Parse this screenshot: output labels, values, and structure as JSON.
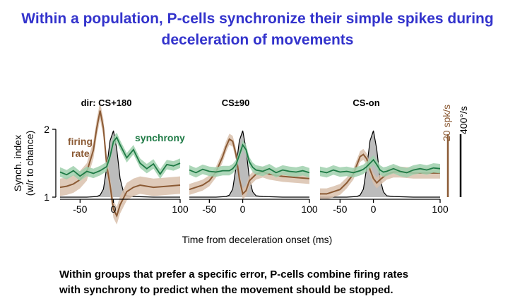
{
  "slide": {
    "title_lines": [
      "Within a population, P-cells synchronize their simple spikes during",
      "deceleration of movements"
    ],
    "caption_lines": [
      "Within groups that prefer a specific error, P-cells combine firing rates",
      "with synchrony to predict when the movement should be stopped."
    ]
  },
  "colors": {
    "title": "#3333cc",
    "synchrony": "#1e7a45",
    "synchrony_band": "#9fd0ad",
    "firing_rate": "#8b5a34",
    "firing_rate_band": "#d9c1ad",
    "velocity": "#000000",
    "velocity_fill": "#b5b5b5"
  },
  "chart_data": {
    "type": "line",
    "xlabel": "Time from deceleration onset (ms)",
    "ylabel_lines": [
      "Synch. index",
      "(w/r to chance)"
    ],
    "ylim": [
      1,
      2
    ],
    "y_ticks": [
      "1",
      "2"
    ],
    "xlim": [
      -80,
      100
    ],
    "x_ticks": [
      -50,
      0,
      100
    ],
    "x_tick_labels": [
      "-50",
      "0",
      "100"
    ],
    "scale_bars": {
      "firing_rate": "20 spk/s",
      "velocity": "400°/s"
    },
    "annotations": {
      "firing_rate": [
        "firing",
        "rate"
      ],
      "synchrony": "synchrony"
    },
    "panels": [
      {
        "title": "dir: CS+180",
        "synchrony": {
          "x": [
            -80,
            -70,
            -60,
            -50,
            -40,
            -30,
            -20,
            -10,
            -5,
            0,
            5,
            10,
            20,
            30,
            40,
            50,
            60,
            70,
            80,
            90,
            100
          ],
          "y": [
            1.37,
            1.33,
            1.39,
            1.31,
            1.38,
            1.35,
            1.39,
            1.45,
            1.6,
            1.82,
            1.88,
            1.77,
            1.58,
            1.7,
            1.5,
            1.42,
            1.49,
            1.34,
            1.48,
            1.46,
            1.5
          ],
          "ci": 0.07
        },
        "firing_rate_pct": {
          "x": [
            -80,
            -70,
            -60,
            -50,
            -40,
            -30,
            -25,
            -20,
            -15,
            -10,
            -5,
            0,
            5,
            10,
            20,
            30,
            40,
            60,
            80,
            100
          ],
          "y": [
            -0.02,
            -0.01,
            0.01,
            0.05,
            0.12,
            0.32,
            0.52,
            0.68,
            0.52,
            0.18,
            0.0,
            -0.22,
            -0.28,
            -0.18,
            -0.06,
            -0.02,
            0.0,
            -0.02,
            -0.01,
            0.0
          ],
          "ci": 0.08
        },
        "velocity_pct": {
          "x": [
            -80,
            -40,
            -25,
            -20,
            -15,
            -10,
            -5,
            0,
            5,
            10,
            15,
            20,
            30,
            60,
            100
          ],
          "y": [
            0.0,
            0.0,
            0.01,
            0.03,
            0.12,
            0.45,
            0.85,
            1.0,
            0.72,
            0.28,
            0.08,
            0.02,
            0.01,
            0.0,
            0.0
          ]
        }
      },
      {
        "title": "CS±90",
        "synchrony": {
          "x": [
            -80,
            -70,
            -60,
            -50,
            -40,
            -30,
            -20,
            -15,
            -10,
            -5,
            0,
            5,
            10,
            15,
            20,
            30,
            40,
            50,
            60,
            70,
            80,
            90,
            100
          ],
          "y": [
            1.4,
            1.36,
            1.41,
            1.38,
            1.37,
            1.39,
            1.39,
            1.42,
            1.48,
            1.62,
            1.77,
            1.7,
            1.52,
            1.44,
            1.4,
            1.38,
            1.42,
            1.36,
            1.4,
            1.38,
            1.37,
            1.39,
            1.36
          ],
          "ci": 0.07
        },
        "firing_rate_pct": {
          "x": [
            -80,
            -70,
            -60,
            -50,
            -40,
            -30,
            -25,
            -20,
            -15,
            -10,
            -5,
            0,
            5,
            10,
            20,
            30,
            40,
            60,
            80,
            100
          ],
          "y": [
            -0.04,
            -0.02,
            0.0,
            0.04,
            0.12,
            0.26,
            0.35,
            0.42,
            0.4,
            0.28,
            0.06,
            -0.08,
            -0.05,
            0.04,
            0.1,
            0.12,
            0.1,
            0.08,
            0.07,
            0.06
          ],
          "ci": 0.05
        },
        "velocity_pct": {
          "x": [
            -80,
            -40,
            -25,
            -20,
            -15,
            -10,
            -5,
            0,
            5,
            10,
            15,
            20,
            30,
            60,
            100
          ],
          "y": [
            0.0,
            0.0,
            0.01,
            0.03,
            0.12,
            0.45,
            0.85,
            1.0,
            0.72,
            0.28,
            0.08,
            0.02,
            0.01,
            0.0,
            0.0
          ]
        }
      },
      {
        "title": "CS-on",
        "synchrony": {
          "x": [
            -80,
            -70,
            -60,
            -50,
            -40,
            -30,
            -20,
            -15,
            -10,
            -5,
            0,
            5,
            10,
            15,
            20,
            30,
            40,
            50,
            60,
            70,
            80,
            90,
            100
          ],
          "y": [
            1.38,
            1.36,
            1.4,
            1.37,
            1.38,
            1.36,
            1.39,
            1.41,
            1.45,
            1.5,
            1.55,
            1.48,
            1.4,
            1.37,
            1.38,
            1.42,
            1.38,
            1.36,
            1.4,
            1.42,
            1.4,
            1.43,
            1.42
          ],
          "ci": 0.07
        },
        "firing_rate_pct": {
          "x": [
            -80,
            -70,
            -60,
            -50,
            -40,
            -30,
            -25,
            -20,
            -15,
            -10,
            -5,
            0,
            5,
            10,
            20,
            30,
            40,
            60,
            80,
            100
          ],
          "y": [
            -0.08,
            -0.08,
            -0.06,
            -0.04,
            0.02,
            0.1,
            0.18,
            0.26,
            0.28,
            0.24,
            0.14,
            0.06,
            0.02,
            0.05,
            0.1,
            0.12,
            0.12,
            0.11,
            0.11,
            0.11
          ],
          "ci": 0.05
        },
        "velocity_pct": {
          "x": [
            -80,
            -40,
            -25,
            -20,
            -15,
            -10,
            -5,
            0,
            5,
            10,
            15,
            20,
            30,
            60,
            100
          ],
          "y": [
            0.0,
            0.0,
            0.01,
            0.03,
            0.12,
            0.45,
            0.85,
            1.0,
            0.72,
            0.28,
            0.08,
            0.02,
            0.01,
            0.0,
            0.0
          ]
        }
      }
    ]
  }
}
